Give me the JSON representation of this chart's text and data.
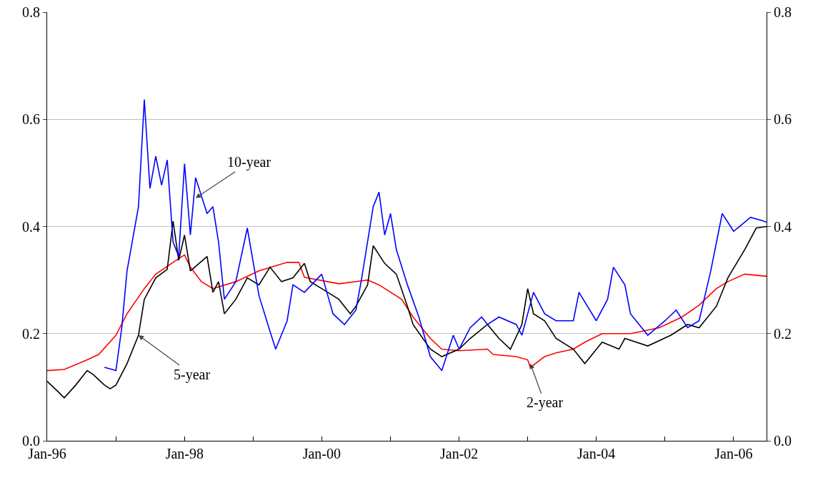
{
  "chart_data": {
    "type": "line",
    "xlim": [
      "1996-01-01",
      "2006-06-25"
    ],
    "xticks": [
      {
        "value": "1996-01-01",
        "label": "Jan-96"
      },
      {
        "value": "1997-01-01",
        "label": null
      },
      {
        "value": "1998-01-01",
        "label": "Jan-98"
      },
      {
        "value": "1999-01-01",
        "label": null
      },
      {
        "value": "2000-01-01",
        "label": "Jan-00"
      },
      {
        "value": "2001-01-01",
        "label": null
      },
      {
        "value": "2002-01-01",
        "label": "Jan-02"
      },
      {
        "value": "2003-01-01",
        "label": null
      },
      {
        "value": "2004-01-01",
        "label": "Jan-04"
      },
      {
        "value": "2005-01-01",
        "label": null
      },
      {
        "value": "2006-01-01",
        "label": "Jan-06"
      }
    ],
    "ylim": [
      0,
      0.8
    ],
    "yticks": [
      {
        "value": 0,
        "label": "0.0"
      },
      {
        "value": 0.2,
        "label": "0.2"
      },
      {
        "value": 0.4,
        "label": "0.4"
      },
      {
        "value": 0.6,
        "label": "0.6"
      },
      {
        "value": 0.8,
        "label": "0.8"
      }
    ],
    "y2lim": [
      0,
      0.8
    ],
    "y2ticks": [
      {
        "value": 0,
        "label": "0.0"
      },
      {
        "value": 0.2,
        "label": "0.2"
      },
      {
        "value": 0.4,
        "label": "0.4"
      },
      {
        "value": 0.6,
        "label": "0.6"
      },
      {
        "value": 0.8,
        "label": "0.8"
      }
    ],
    "grid": "y",
    "series": [
      {
        "color": "#ff0000",
        "x": [
          "1996-01",
          "1996-04",
          "1996-08",
          "1996-10",
          "1997-01",
          "1997-03",
          "1997-06",
          "1997-08",
          "1997-11",
          "1998-01",
          "1998-02",
          "1998-04",
          "1998-06",
          "1998-10",
          "1999-02",
          "1999-07",
          "1999-09",
          "1999-10",
          "2000-04",
          "2000-09",
          "2000-11",
          "2001-03",
          "2001-05",
          "2001-08",
          "2001-10",
          "2002-01",
          "2002-06",
          "2002-07",
          "2002-11",
          "2003-01",
          "2003-01-15",
          "2003-04",
          "2003-06",
          "2003-09",
          "2003-11",
          "2004-02",
          "2004-07",
          "2004-12",
          "2005-04",
          "2005-07",
          "2005-10",
          "2005-12",
          "2006-03",
          "2006-06-25"
        ],
        "values": [
          0.131,
          0.133,
          0.151,
          0.161,
          0.197,
          0.237,
          0.284,
          0.311,
          0.333,
          0.347,
          0.324,
          0.297,
          0.284,
          0.297,
          0.317,
          0.333,
          0.333,
          0.305,
          0.293,
          0.3,
          0.291,
          0.264,
          0.231,
          0.191,
          0.171,
          0.168,
          0.171,
          0.161,
          0.157,
          0.151,
          0.137,
          0.157,
          0.164,
          0.171,
          0.184,
          0.2,
          0.2,
          0.211,
          0.231,
          0.253,
          0.284,
          0.297,
          0.311,
          0.307
        ]
      },
      {
        "color": "#000000",
        "x": [
          "1996-01",
          "1996-03",
          "1996-04",
          "1996-06",
          "1996-08",
          "1996-09",
          "1996-11",
          "1996-12",
          "1997-01",
          "1997-03",
          "1997-05",
          "1997-06",
          "1997-08",
          "1997-10",
          "1997-11",
          "1997-12",
          "1998-01",
          "1998-02",
          "1998-05",
          "1998-06",
          "1998-07",
          "1998-08",
          "1998-10",
          "1998-12",
          "1999-02",
          "1999-04",
          "1999-06",
          "1999-08",
          "1999-10",
          "1999-11",
          "2000-01",
          "2000-04",
          "2000-06",
          "2000-07",
          "2000-09",
          "2000-10",
          "2000-12",
          "2001-02",
          "2001-04",
          "2001-05",
          "2001-08",
          "2001-10",
          "2002-01",
          "2002-03",
          "2002-06",
          "2002-08",
          "2002-10",
          "2002-12",
          "2003-01",
          "2003-02",
          "2003-04",
          "2003-06",
          "2003-09",
          "2003-11",
          "2004-02",
          "2004-05",
          "2004-06",
          "2004-10",
          "2005-02",
          "2005-05",
          "2005-07",
          "2005-10",
          "2005-12",
          "2006-03",
          "2006-05",
          "2006-06-25"
        ],
        "values": [
          0.111,
          0.091,
          0.08,
          0.104,
          0.131,
          0.124,
          0.104,
          0.097,
          0.104,
          0.144,
          0.197,
          0.264,
          0.304,
          0.32,
          0.41,
          0.337,
          0.384,
          0.317,
          0.344,
          0.277,
          0.297,
          0.237,
          0.264,
          0.304,
          0.291,
          0.324,
          0.297,
          0.304,
          0.331,
          0.297,
          0.284,
          0.264,
          0.237,
          0.251,
          0.291,
          0.364,
          0.331,
          0.311,
          0.251,
          0.217,
          0.171,
          0.157,
          0.171,
          0.191,
          0.217,
          0.191,
          0.171,
          0.217,
          0.284,
          0.237,
          0.224,
          0.191,
          0.171,
          0.144,
          0.184,
          0.171,
          0.191,
          0.177,
          0.197,
          0.217,
          0.211,
          0.251,
          0.304,
          0.357,
          0.397,
          0.4
        ]
      },
      {
        "color": "#0000ff",
        "x": [
          "1996-11",
          "1997-01",
          "1997-02",
          "1997-03",
          "1997-05",
          "1997-06",
          "1997-07",
          "1997-08",
          "1997-09",
          "1997-10",
          "1997-11",
          "1997-12",
          "1998-01",
          "1998-02",
          "1998-03",
          "1998-05",
          "1998-06",
          "1998-07",
          "1998-08",
          "1998-10",
          "1998-12",
          "1999-02",
          "1999-04",
          "1999-05",
          "1999-07",
          "1999-08",
          "1999-10",
          "2000-01",
          "2000-03",
          "2000-05",
          "2000-07",
          "2000-08",
          "2000-10",
          "2000-11",
          "2000-12",
          "2001-01",
          "2001-02",
          "2001-04",
          "2001-06",
          "2001-08",
          "2001-10",
          "2001-12",
          "2002-01",
          "2002-03",
          "2002-05",
          "2002-06",
          "2002-08",
          "2002-11",
          "2002-12",
          "2003-02",
          "2003-04",
          "2003-06",
          "2003-09",
          "2003-10",
          "2004-01",
          "2004-03",
          "2004-04",
          "2004-06",
          "2004-07",
          "2004-10",
          "2005-01",
          "2005-03",
          "2005-05",
          "2005-07",
          "2005-09",
          "2005-11",
          "2006-01",
          "2006-04",
          "2006-06",
          "2006-06-25"
        ],
        "values": [
          0.137,
          0.131,
          0.211,
          0.317,
          0.437,
          0.637,
          0.471,
          0.531,
          0.477,
          0.524,
          0.371,
          0.344,
          0.517,
          0.384,
          0.491,
          0.424,
          0.437,
          0.371,
          0.264,
          0.297,
          0.397,
          0.271,
          0.204,
          0.171,
          0.224,
          0.291,
          0.277,
          0.311,
          0.237,
          0.217,
          0.244,
          0.304,
          0.437,
          0.464,
          0.384,
          0.424,
          0.357,
          0.291,
          0.231,
          0.157,
          0.131,
          0.197,
          0.171,
          0.211,
          0.231,
          0.217,
          0.231,
          0.217,
          0.197,
          0.277,
          0.237,
          0.224,
          0.224,
          0.277,
          0.224,
          0.264,
          0.324,
          0.291,
          0.237,
          0.197,
          0.224,
          0.244,
          0.211,
          0.224,
          0.317,
          0.424,
          0.391,
          0.417,
          0.411,
          0.408
        ]
      }
    ],
    "annotations": [
      {
        "text": "10-year",
        "x": "1998-03",
        "y": 0.453
      },
      {
        "text": "5-year",
        "x": "1997-05",
        "y": 0.197
      },
      {
        "text": "2-year",
        "x": "2003-01-15",
        "y": 0.144
      }
    ]
  }
}
